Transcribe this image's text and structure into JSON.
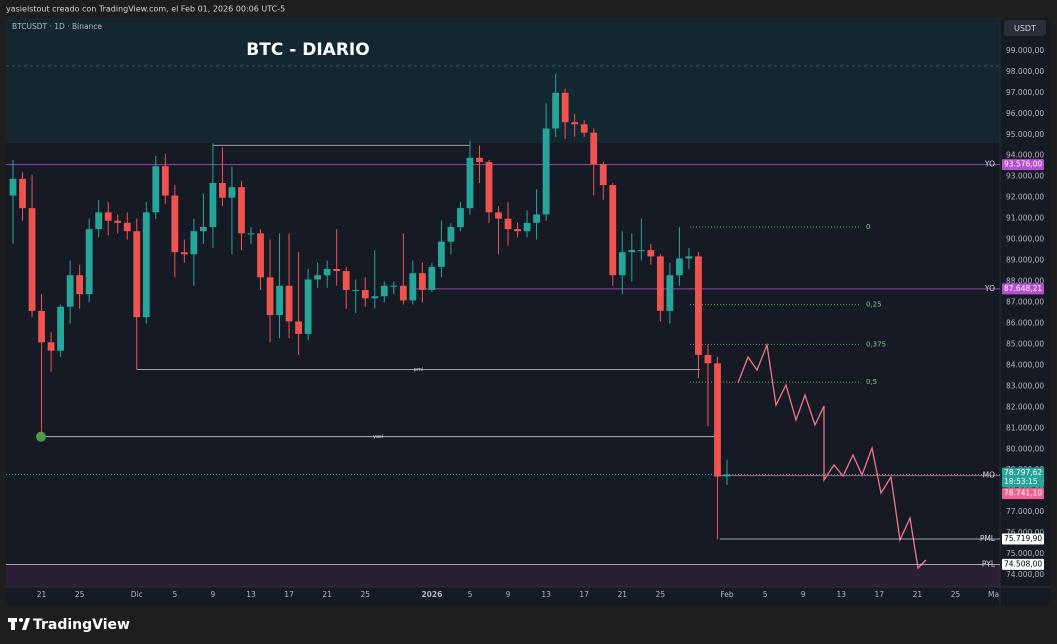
{
  "credit": "yasielstout creado con TradingView.com, el Feb 01, 2026 00:06 UTC-5",
  "symbol": "BTCUSDT · 1D · Binance",
  "currency": "USDT",
  "brand": "TradingView",
  "chart_data": {
    "type": "candlestick",
    "title": "BTC - DIARIO",
    "categories": [
      null,
      null,
      null,
      "21",
      null,
      null,
      null,
      "25",
      null,
      null,
      null,
      null,
      null,
      "Dic",
      null,
      null,
      null,
      "5",
      null,
      null,
      null,
      "9",
      null,
      null,
      null,
      "13",
      null,
      null,
      null,
      "17",
      null,
      null,
      null,
      "21",
      null,
      null,
      null,
      "25",
      null,
      null,
      null,
      null,
      null,
      null,
      "2026",
      null,
      null,
      null,
      "5",
      null,
      null,
      null,
      "9",
      null,
      null,
      null,
      "13",
      null,
      null,
      null,
      "17",
      null,
      null,
      null,
      "21",
      null,
      null,
      null,
      "25",
      null,
      null,
      null,
      null,
      null,
      null,
      "Feb",
      null,
      null,
      null,
      "5",
      null,
      null,
      null,
      "9",
      null,
      null,
      null,
      "13",
      null,
      null,
      null,
      "17",
      null,
      null,
      null,
      "21",
      null,
      null,
      null,
      "25",
      null,
      null,
      null,
      "Ma"
    ],
    "open": [
      92100,
      92900,
      91500,
      86600,
      85100,
      84700,
      86800,
      88300,
      87400,
      90500,
      91300,
      90900,
      90800,
      90400,
      86300,
      91300,
      93500,
      92100,
      89400,
      89300,
      90400,
      90600,
      92700,
      92000,
      92500,
      90300,
      90300,
      88200,
      86400,
      87800,
      86100,
      85500,
      88100,
      88300,
      88600,
      88500,
      87600,
      87600,
      87200,
      87300,
      87800,
      87800,
      87100,
      88400,
      87600,
      88700,
      89900,
      90600,
      91500,
      93900,
      93700,
      91300,
      91000,
      90500,
      90400,
      90800,
      91200,
      95300,
      97000,
      95600,
      95500,
      95100,
      93600,
      92600,
      88300,
      89400,
      89500,
      89500,
      89200,
      86600,
      88300,
      89100,
      89200,
      84500,
      84100,
      78700,
      null,
      null,
      null,
      null,
      null,
      null,
      null,
      null,
      null,
      null,
      null,
      null,
      null,
      null,
      null,
      null,
      null,
      null,
      null,
      null,
      null,
      null,
      null,
      null,
      null,
      null,
      null,
      null
    ],
    "high": [
      93800,
      93200,
      93100,
      87400,
      85600,
      86900,
      89000,
      88800,
      91000,
      91900,
      91800,
      91200,
      91300,
      91000,
      91800,
      94000,
      94100,
      92600,
      90000,
      91000,
      92200,
      94600,
      94400,
      93500,
      92800,
      90600,
      90500,
      90000,
      90300,
      90300,
      89400,
      88600,
      88900,
      89000,
      90500,
      88700,
      88100,
      88200,
      89500,
      88000,
      88000,
      90300,
      89000,
      88900,
      88900,
      90900,
      90800,
      91800,
      94700,
      94500,
      93800,
      91600,
      91800,
      90800,
      91400,
      92400,
      96500,
      97900,
      97200,
      96000,
      95700,
      95300,
      93700,
      92700,
      90400,
      90300,
      91000,
      89800,
      89300,
      88900,
      90600,
      89600,
      89400,
      85000,
      84400,
      79500,
      null,
      null,
      null,
      null,
      null,
      null,
      null,
      null,
      null,
      null,
      null,
      null,
      null,
      null,
      null,
      null,
      null,
      null,
      null,
      null,
      null,
      null,
      null,
      null,
      null,
      null,
      null,
      null
    ],
    "low": [
      89800,
      90900,
      86300,
      80600,
      83700,
      84400,
      86000,
      86700,
      87000,
      90100,
      90200,
      90300,
      90000,
      83800,
      86000,
      91000,
      91700,
      88200,
      88900,
      87800,
      89800,
      89600,
      91600,
      89300,
      89500,
      89800,
      87600,
      85100,
      85300,
      85300,
      84500,
      85200,
      87700,
      87700,
      87800,
      86700,
      86500,
      86800,
      86700,
      87000,
      87400,
      86900,
      86900,
      87000,
      87500,
      88200,
      89300,
      90400,
      91200,
      92700,
      90800,
      89300,
      89700,
      90100,
      90100,
      90000,
      90900,
      94900,
      94800,
      94900,
      94900,
      92100,
      91900,
      87800,
      87400,
      88000,
      89000,
      88800,
      86100,
      86000,
      87800,
      88600,
      83400,
      81100,
      75700,
      78300,
      null,
      null,
      null,
      null,
      null,
      null,
      null,
      null,
      null,
      null,
      null,
      null,
      null,
      null,
      null,
      null,
      null,
      null,
      null,
      null,
      null,
      null,
      null,
      null,
      null,
      null,
      null,
      null
    ],
    "close": [
      92900,
      91500,
      86600,
      85100,
      84700,
      86800,
      88300,
      87400,
      90500,
      91300,
      90900,
      90800,
      90400,
      86300,
      91300,
      93500,
      92100,
      89400,
      89300,
      90400,
      90600,
      92700,
      92000,
      92500,
      90300,
      90300,
      88200,
      86400,
      87800,
      86100,
      85500,
      88100,
      88300,
      88600,
      88500,
      87600,
      87600,
      87200,
      87300,
      87800,
      87800,
      87100,
      88400,
      87600,
      88700,
      89900,
      90600,
      91500,
      93900,
      93700,
      91300,
      91000,
      90500,
      90400,
      90800,
      91200,
      95300,
      97000,
      95600,
      95500,
      95100,
      93600,
      92600,
      88300,
      89400,
      89500,
      89500,
      89200,
      86600,
      88300,
      89100,
      89200,
      84500,
      84100,
      78700,
      78797.62,
      null,
      null,
      null,
      null,
      null,
      null,
      null,
      null,
      null,
      null,
      null,
      null,
      null,
      null,
      null,
      null,
      null,
      null,
      null,
      null,
      null,
      null,
      null,
      null,
      null,
      null,
      null,
      null
    ],
    "up_color": "#26a69a",
    "down_color": "#ef5350",
    "ylim": [
      73430,
      100570
    ],
    "yticks": [
      {
        "value": 74000,
        "label": "74.000,00"
      },
      {
        "value": 75000,
        "label": "75.000,00"
      },
      {
        "value": 76000,
        "label": "76.000,00"
      },
      {
        "value": 77000,
        "label": "77.000,00"
      },
      {
        "value": 78000,
        "label": "78.000,00"
      },
      {
        "value": 79000,
        "label": "79.000,00"
      },
      {
        "value": 80000,
        "label": "80.000,00"
      },
      {
        "value": 81000,
        "label": "81.000,00"
      },
      {
        "value": 82000,
        "label": "82.000,00"
      },
      {
        "value": 83000,
        "label": "83.000,00"
      },
      {
        "value": 84000,
        "label": "84.000,00"
      },
      {
        "value": 85000,
        "label": "85.000,00"
      },
      {
        "value": 86000,
        "label": "86.000,00"
      },
      {
        "value": 87000,
        "label": "87.000,00"
      },
      {
        "value": 88000,
        "label": "88.000,00"
      },
      {
        "value": 89000,
        "label": "89.000,00"
      },
      {
        "value": 90000,
        "label": "90.000,00"
      },
      {
        "value": 91000,
        "label": "91.000,00"
      },
      {
        "value": 92000,
        "label": "92.000,00"
      },
      {
        "value": 93000,
        "label": "93.000,00"
      },
      {
        "value": 94000,
        "label": "94.000,00"
      },
      {
        "value": 95000,
        "label": "95.000,00"
      },
      {
        "value": 96000,
        "label": "96.000,00"
      },
      {
        "value": 97000,
        "label": "97.000,00"
      },
      {
        "value": 98000,
        "label": "98.000,00"
      },
      {
        "value": 99000,
        "label": "99.000,00"
      }
    ],
    "grid": false,
    "levels": [
      {
        "name": "YO",
        "value": 93576,
        "value_label": "93.576,00",
        "color": "#b74fd1"
      },
      {
        "name": "YO",
        "value": 87648.21,
        "value_label": "87.648,21",
        "color": "#b74fd1"
      },
      {
        "name": "MO",
        "value": 78741.1,
        "value_label": "78.741,10",
        "color": "#f06292"
      },
      {
        "name": "PML",
        "value": 75719.9,
        "value_label": "75.719,90",
        "color": "#ffffff"
      },
      {
        "name": "PYL",
        "value": 74508,
        "value_label": "74.508,00",
        "color": "#ffffff"
      }
    ],
    "last_price": {
      "value": 78797.62,
      "label": "78.797,62",
      "countdown": "18:53:15",
      "color": "#26a69a"
    },
    "fib_levels": [
      {
        "label": "0",
        "value": 90600
      },
      {
        "label": "0,25",
        "value": 86900
      },
      {
        "label": "0,375",
        "value": 85000
      },
      {
        "label": "0,5",
        "value": 83200
      }
    ],
    "lines": [
      {
        "value": 94500
      },
      {
        "label": "pml",
        "value": 83800
      },
      {
        "label": "yasl",
        "value": 80600
      }
    ]
  }
}
